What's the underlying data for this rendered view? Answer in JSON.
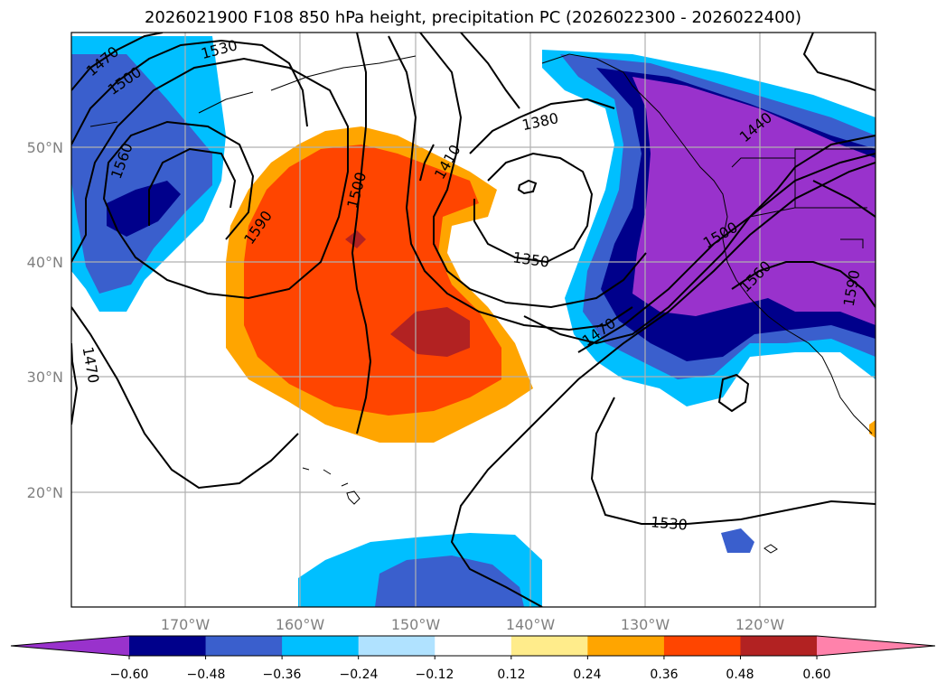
{
  "title": "2026021900 F108 850 hPa height, precipitation PC (2026022300 - 2026022400)",
  "map": {
    "lat_labels": [
      "50°N",
      "40°N",
      "30°N",
      "20°N"
    ],
    "lon_labels": [
      "170°W",
      "160°W",
      "150°W",
      "140°W",
      "130°W",
      "120°W"
    ],
    "contour_labels": [
      "1470",
      "1500",
      "1530",
      "1560",
      "1590",
      "1500",
      "1410",
      "1380",
      "1350",
      "1470",
      "1440",
      "1500",
      "1560",
      "1590",
      "1470",
      "1530"
    ]
  },
  "colorbar": {
    "ticks": [
      "−0.60",
      "−0.48",
      "−0.36",
      "−0.24",
      "−0.12",
      "0.12",
      "0.24",
      "0.36",
      "0.48",
      "0.60"
    ],
    "colors": [
      "#9932CC",
      "#00008B",
      "#3A5FCD",
      "#00BFFF",
      "#B0E2FF",
      "#FFFFFF",
      "#FFEC8B",
      "#FFA500",
      "#FF4500",
      "#B22222",
      "#FF82AB"
    ]
  }
}
